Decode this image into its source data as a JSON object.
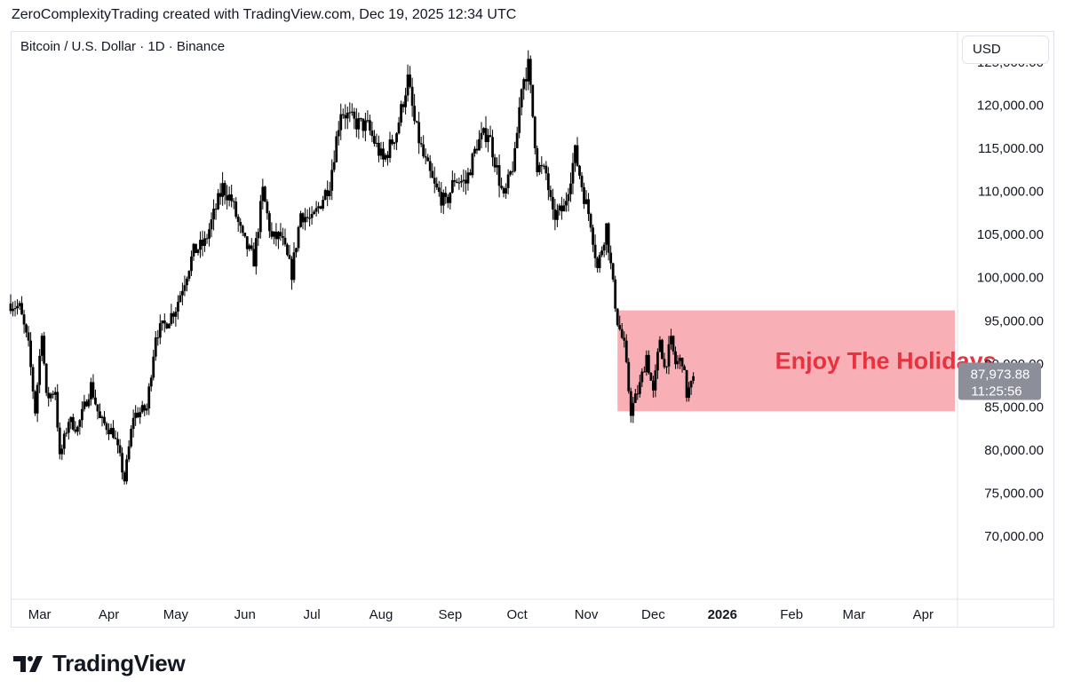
{
  "header": {
    "attribution": "ZeroComplexityTrading created with TradingView.com, Dec 19, 2025 12:34 UTC"
  },
  "symbol_label": "Bitcoin / U.S. Dollar · 1D · Binance",
  "currency_button": "USD",
  "footer": {
    "logo_text": "TradingView",
    "logo_icon": "tradingview-logo-icon"
  },
  "colors": {
    "candle": "#000000",
    "zone_fill": "#f7a9b0",
    "annotation_text": "#e8333f",
    "price_badge": "#8c8f99",
    "grid_border": "#e0e3eb"
  },
  "chart_data": {
    "type": "candlestick",
    "title": "Bitcoin / U.S. Dollar · 1D · Binance",
    "currency": "USD",
    "y_axis": {
      "side": "right",
      "ylim": [
        63000,
        128500
      ],
      "ticks": [
        125000,
        120000,
        115000,
        110000,
        105000,
        100000,
        95000,
        90000,
        85000,
        80000,
        75000,
        70000
      ],
      "tick_labels": [
        "125,000.00",
        "120,000.00",
        "115,000.00",
        "110,000.00",
        "105,000.00",
        "100,000.00",
        "95,000.00",
        "90,000.00",
        "85,000.00",
        "80,000.00",
        "75,000.00",
        "70,000.00"
      ]
    },
    "x_axis": {
      "range": [
        "2025-02-16",
        "2026-04-16"
      ],
      "ticks": [
        {
          "date": "2025-03-01",
          "label": "Mar"
        },
        {
          "date": "2025-04-01",
          "label": "Apr"
        },
        {
          "date": "2025-05-01",
          "label": "May"
        },
        {
          "date": "2025-06-01",
          "label": "Jun"
        },
        {
          "date": "2025-07-01",
          "label": "Jul"
        },
        {
          "date": "2025-08-01",
          "label": "Aug"
        },
        {
          "date": "2025-09-01",
          "label": "Sep"
        },
        {
          "date": "2025-10-01",
          "label": "Oct"
        },
        {
          "date": "2025-11-01",
          "label": "Nov"
        },
        {
          "date": "2025-12-01",
          "label": "Dec"
        },
        {
          "date": "2026-01-01",
          "label": "2026",
          "bold": true
        },
        {
          "date": "2026-02-01",
          "label": "Feb"
        },
        {
          "date": "2026-03-01",
          "label": "Mar"
        },
        {
          "date": "2026-04-01",
          "label": "Apr"
        }
      ]
    },
    "price_path": [
      [
        "2025-02-16",
        97000
      ],
      [
        "2025-02-20",
        96500
      ],
      [
        "2025-02-24",
        92000
      ],
      [
        "2025-02-27",
        84500
      ],
      [
        "2025-03-02",
        94000
      ],
      [
        "2025-03-04",
        86000
      ],
      [
        "2025-03-08",
        87000
      ],
      [
        "2025-03-10",
        79000
      ],
      [
        "2025-03-14",
        83500
      ],
      [
        "2025-03-18",
        82500
      ],
      [
        "2025-03-24",
        87500
      ],
      [
        "2025-03-28",
        83500
      ],
      [
        "2025-04-03",
        82000
      ],
      [
        "2025-04-06",
        79000
      ],
      [
        "2025-04-08",
        76500
      ],
      [
        "2025-04-12",
        84000
      ],
      [
        "2025-04-18",
        84800
      ],
      [
        "2025-04-22",
        93500
      ],
      [
        "2025-04-26",
        94500
      ],
      [
        "2025-05-01",
        96500
      ],
      [
        "2025-05-09",
        103000
      ],
      [
        "2025-05-14",
        104000
      ],
      [
        "2025-05-22",
        110500
      ],
      [
        "2025-05-26",
        109000
      ],
      [
        "2025-05-31",
        104500
      ],
      [
        "2025-06-05",
        102000
      ],
      [
        "2025-06-09",
        110000
      ],
      [
        "2025-06-13",
        104500
      ],
      [
        "2025-06-17",
        104800
      ],
      [
        "2025-06-22",
        100500
      ],
      [
        "2025-06-26",
        107500
      ],
      [
        "2025-07-01",
        106500
      ],
      [
        "2025-07-09",
        111000
      ],
      [
        "2025-07-14",
        119500
      ],
      [
        "2025-07-20",
        118000
      ],
      [
        "2025-07-26",
        117500
      ],
      [
        "2025-08-02",
        113500
      ],
      [
        "2025-08-08",
        117000
      ],
      [
        "2025-08-13",
        123000
      ],
      [
        "2025-08-16",
        118000
      ],
      [
        "2025-08-20",
        114000
      ],
      [
        "2025-08-25",
        110500
      ],
      [
        "2025-08-30",
        108500
      ],
      [
        "2025-09-03",
        111500
      ],
      [
        "2025-09-08",
        111000
      ],
      [
        "2025-09-13",
        115500
      ],
      [
        "2025-09-18",
        117000
      ],
      [
        "2025-09-22",
        112500
      ],
      [
        "2025-09-25",
        109000
      ],
      [
        "2025-09-30",
        114000
      ],
      [
        "2025-10-03",
        122500
      ],
      [
        "2025-10-06",
        124500
      ],
      [
        "2025-10-10",
        113000
      ],
      [
        "2025-10-14",
        112000
      ],
      [
        "2025-10-17",
        107000
      ],
      [
        "2025-10-22",
        108000
      ],
      [
        "2025-10-27",
        114500
      ],
      [
        "2025-10-31",
        109500
      ],
      [
        "2025-11-03",
        106500
      ],
      [
        "2025-11-06",
        101000
      ],
      [
        "2025-11-10",
        106000
      ],
      [
        "2025-11-13",
        99000
      ],
      [
        "2025-11-15",
        95000
      ],
      [
        "2025-11-18",
        92000
      ],
      [
        "2025-11-21",
        84500
      ],
      [
        "2025-11-25",
        87500
      ],
      [
        "2025-11-28",
        91000
      ],
      [
        "2025-12-01",
        86500
      ],
      [
        "2025-12-04",
        93000
      ],
      [
        "2025-12-06",
        89500
      ],
      [
        "2025-12-09",
        92500
      ],
      [
        "2025-12-11",
        90000
      ],
      [
        "2025-12-14",
        90500
      ],
      [
        "2025-12-16",
        86500
      ],
      [
        "2025-12-19",
        87974
      ]
    ],
    "annotations": [
      {
        "type": "zone",
        "from": "2025-11-15",
        "to": "2026-04-16",
        "y_low": 84500,
        "y_high": 96200,
        "label": "Enjoy The Holidays"
      }
    ],
    "last_price": {
      "value_label": "87,973.88",
      "countdown": "11:25:56",
      "value": 87973.88
    }
  }
}
